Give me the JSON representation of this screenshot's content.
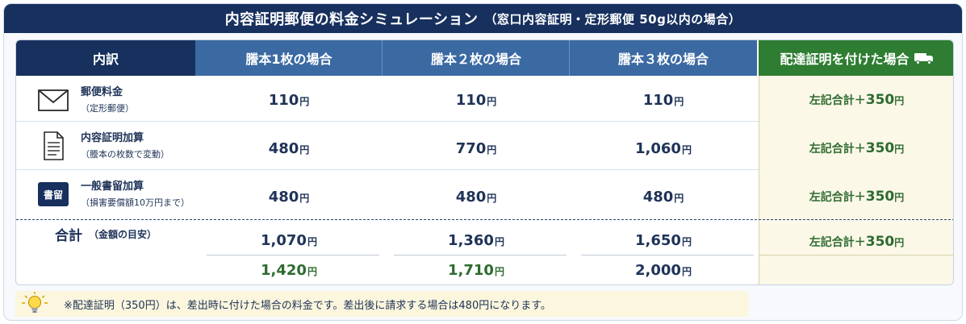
{
  "title": {
    "main": "内容証明郵便の料金シミュレーション",
    "sub": "（窓口内容証明・定形郵便 50g以内の場合）"
  },
  "headers": {
    "breakdown": "内訳",
    "col1": "謄本1枚の場合",
    "col2": "謄本２枚の場合",
    "col3": "謄本３枚の場合",
    "cert": "配達証明を付けた場合"
  },
  "icons": {
    "row1": "envelope-icon",
    "row2": "document-icon",
    "row3": "registered-mail-badge",
    "cert_header": "truck-icon",
    "note": "lightbulb-icon"
  },
  "rows": [
    {
      "label": "郵便料金",
      "sub": "（定形郵便）",
      "values": [
        "110",
        "110",
        "110"
      ],
      "cert": {
        "prefix": "左記合計＋",
        "value": "350"
      }
    },
    {
      "label": "内容証明加算",
      "sub": "（謄本の枚数で変動）",
      "values": [
        "480",
        "770",
        "1,060"
      ],
      "cert": {
        "prefix": "左記合計＋",
        "value": "350"
      }
    },
    {
      "label": "一般書留加算",
      "sub": "（損害要償額10万円まで）",
      "badge": "書留",
      "values": [
        "480",
        "480",
        "480"
      ],
      "cert": {
        "prefix": "左記合計＋",
        "value": "350"
      }
    }
  ],
  "total": {
    "label": "合計",
    "sub": "（金額の目安）",
    "values": [
      "1,070",
      "1,360",
      "1,650"
    ],
    "with_cert": [
      "1,420",
      "1,710",
      "2,000"
    ],
    "cert": {
      "prefix": "左記合計＋",
      "value": "350"
    }
  },
  "yen": "円",
  "note": "※配達証明（350円）は、差出時に付けた場合の料金です。差出後に請求する場合は480円になります。",
  "colors": {
    "navy": "#17305e",
    "blue": "#3b6aa3",
    "green": "#2e7d32",
    "green_text": "#2e6b2f",
    "cream": "#fbf8e8"
  }
}
